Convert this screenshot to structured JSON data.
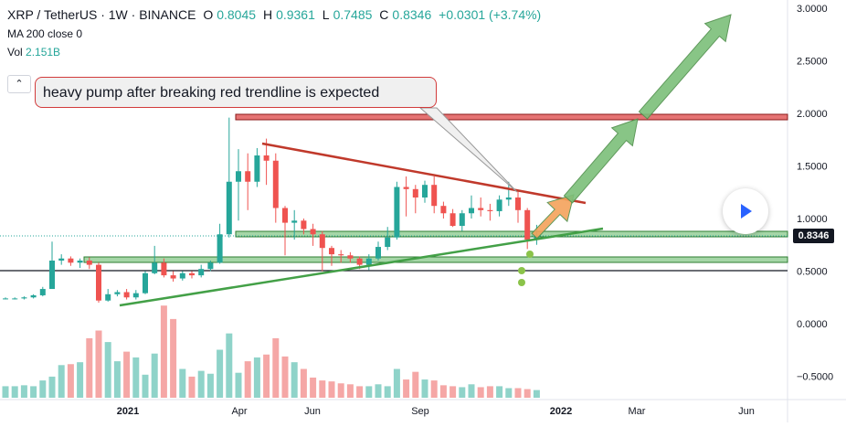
{
  "legend": {
    "symbol": "XRP / TetherUS · 1W · BINANCE",
    "o_label": "O",
    "o": "0.8045",
    "h_label": "H",
    "h": "0.9361",
    "l_label": "L",
    "l": "0.7485",
    "c_label": "C",
    "c": "0.8346",
    "change": "+0.0301 (+3.74%)",
    "ma": "MA 200 close 0",
    "vol_label": "Vol",
    "vol": "2.151B"
  },
  "collapse_icon": "chevron-up-icon",
  "callout_text": "heavy pump after breaking red trendline is expected",
  "price_axis": [
    "3.0000",
    "2.5000",
    "2.0000",
    "1.5000",
    "1.0000",
    "0.5000",
    "0.0000",
    "−0.5000"
  ],
  "time_axis": [
    "2021",
    "Apr",
    "Jun",
    "Sep",
    "2022",
    "Mar",
    "Jun"
  ],
  "last_price": "0.8346",
  "colors": {
    "up": "#26a69a",
    "down": "#ef5350",
    "vol_up": "#8fd3c9",
    "vol_down": "#f5a7a6",
    "trend_red": "#c0392b",
    "trend_green": "#43a047",
    "arrow_green": "#7cbf7a",
    "arrow_orange": "#f4a25b"
  },
  "play_icon": "play-icon",
  "chart_data": {
    "type": "candlestick",
    "title": "XRP / TetherUS · 1W · BINANCE",
    "ylim": [
      -0.6,
      3.0
    ],
    "x": [
      "2020-10-19",
      "2020-10-26",
      "2020-11-02",
      "2020-11-09",
      "2020-11-16",
      "2020-11-23",
      "2020-11-30",
      "2020-12-07",
      "2020-12-14",
      "2020-12-21",
      "2020-12-28",
      "2021-01-04",
      "2021-01-11",
      "2021-01-18",
      "2021-01-25",
      "2021-02-01",
      "2021-02-08",
      "2021-02-15",
      "2021-02-22",
      "2021-03-01",
      "2021-03-08",
      "2021-03-15",
      "2021-03-22",
      "2021-03-29",
      "2021-04-05",
      "2021-04-12",
      "2021-04-19",
      "2021-04-26",
      "2021-05-03",
      "2021-05-10",
      "2021-05-17",
      "2021-05-24",
      "2021-05-31",
      "2021-06-07",
      "2021-06-14",
      "2021-06-21",
      "2021-06-28",
      "2021-07-05",
      "2021-07-12",
      "2021-07-19",
      "2021-07-26",
      "2021-08-02",
      "2021-08-09",
      "2021-08-16",
      "2021-08-23",
      "2021-08-30",
      "2021-09-06",
      "2021-09-13",
      "2021-09-20",
      "2021-09-27",
      "2021-10-04",
      "2021-10-11",
      "2021-10-18",
      "2021-10-25",
      "2021-11-01",
      "2021-11-08",
      "2021-11-15",
      "2021-11-22"
    ],
    "open": [
      0.24,
      0.24,
      0.24,
      0.25,
      0.27,
      0.33,
      0.6,
      0.62,
      0.58,
      0.6,
      0.56,
      0.22,
      0.28,
      0.3,
      0.25,
      0.29,
      0.48,
      0.58,
      0.46,
      0.43,
      0.48,
      0.46,
      0.52,
      0.58,
      0.85,
      1.35,
      1.45,
      1.35,
      1.6,
      1.55,
      1.1,
      0.96,
      0.98,
      0.9,
      0.85,
      0.72,
      0.66,
      0.65,
      0.62,
      0.56,
      0.62,
      0.73,
      0.82,
      1.3,
      1.28,
      1.2,
      1.32,
      1.12,
      1.05,
      0.93,
      1.05,
      1.1,
      1.08,
      1.07,
      1.18,
      1.2,
      1.08,
      0.8
    ],
    "close": [
      0.24,
      0.24,
      0.25,
      0.27,
      0.33,
      0.6,
      0.62,
      0.58,
      0.6,
      0.56,
      0.22,
      0.28,
      0.3,
      0.25,
      0.29,
      0.48,
      0.58,
      0.46,
      0.43,
      0.48,
      0.46,
      0.52,
      0.58,
      0.85,
      1.35,
      1.45,
      1.35,
      1.6,
      1.55,
      1.1,
      0.96,
      0.98,
      0.9,
      0.85,
      0.72,
      0.66,
      0.65,
      0.62,
      0.56,
      0.62,
      0.73,
      0.82,
      1.3,
      1.28,
      1.2,
      1.32,
      1.12,
      1.05,
      0.93,
      1.05,
      1.1,
      1.08,
      1.07,
      1.18,
      1.2,
      1.08,
      0.8,
      0.83
    ],
    "high": [
      0.25,
      0.25,
      0.26,
      0.28,
      0.35,
      0.78,
      0.66,
      0.64,
      0.62,
      0.63,
      0.58,
      0.33,
      0.32,
      0.33,
      0.32,
      0.5,
      0.74,
      0.62,
      0.5,
      0.5,
      0.5,
      0.56,
      0.6,
      0.95,
      1.96,
      1.66,
      1.62,
      1.67,
      1.76,
      1.62,
      1.12,
      1.08,
      1.0,
      0.95,
      0.88,
      0.74,
      0.7,
      0.68,
      0.64,
      0.66,
      0.78,
      0.92,
      1.35,
      1.4,
      1.32,
      1.36,
      1.4,
      1.16,
      1.09,
      1.08,
      1.22,
      1.2,
      1.14,
      1.22,
      1.35,
      1.26,
      1.1,
      0.94
    ],
    "low": [
      0.23,
      0.23,
      0.23,
      0.24,
      0.26,
      0.33,
      0.56,
      0.55,
      0.53,
      0.52,
      0.2,
      0.21,
      0.26,
      0.23,
      0.23,
      0.28,
      0.47,
      0.44,
      0.4,
      0.41,
      0.43,
      0.44,
      0.5,
      0.57,
      0.82,
      0.98,
      1.08,
      1.3,
      1.32,
      0.96,
      0.65,
      0.8,
      0.85,
      0.74,
      0.5,
      0.55,
      0.58,
      0.58,
      0.52,
      0.51,
      0.6,
      0.7,
      0.8,
      1.02,
      1.05,
      1.15,
      1.05,
      1.0,
      0.92,
      0.88,
      1.0,
      1.02,
      0.98,
      1.02,
      1.12,
      0.96,
      0.71,
      0.75
    ],
    "volume": [
      0.12,
      0.12,
      0.13,
      0.12,
      0.18,
      0.22,
      0.34,
      0.35,
      0.37,
      0.62,
      0.7,
      0.58,
      0.38,
      0.48,
      0.42,
      0.24,
      0.46,
      0.96,
      0.82,
      0.3,
      0.22,
      0.28,
      0.25,
      0.5,
      0.67,
      0.26,
      0.38,
      0.42,
      0.45,
      0.62,
      0.43,
      0.37,
      0.3,
      0.21,
      0.18,
      0.17,
      0.15,
      0.14,
      0.12,
      0.12,
      0.14,
      0.12,
      0.3,
      0.19,
      0.27,
      0.19,
      0.18,
      0.13,
      0.12,
      0.11,
      0.14,
      0.11,
      0.12,
      0.12,
      0.1,
      0.1,
      0.09,
      0.08
    ],
    "annotations": [
      "heavy pump after breaking red trendline is expected"
    ]
  }
}
